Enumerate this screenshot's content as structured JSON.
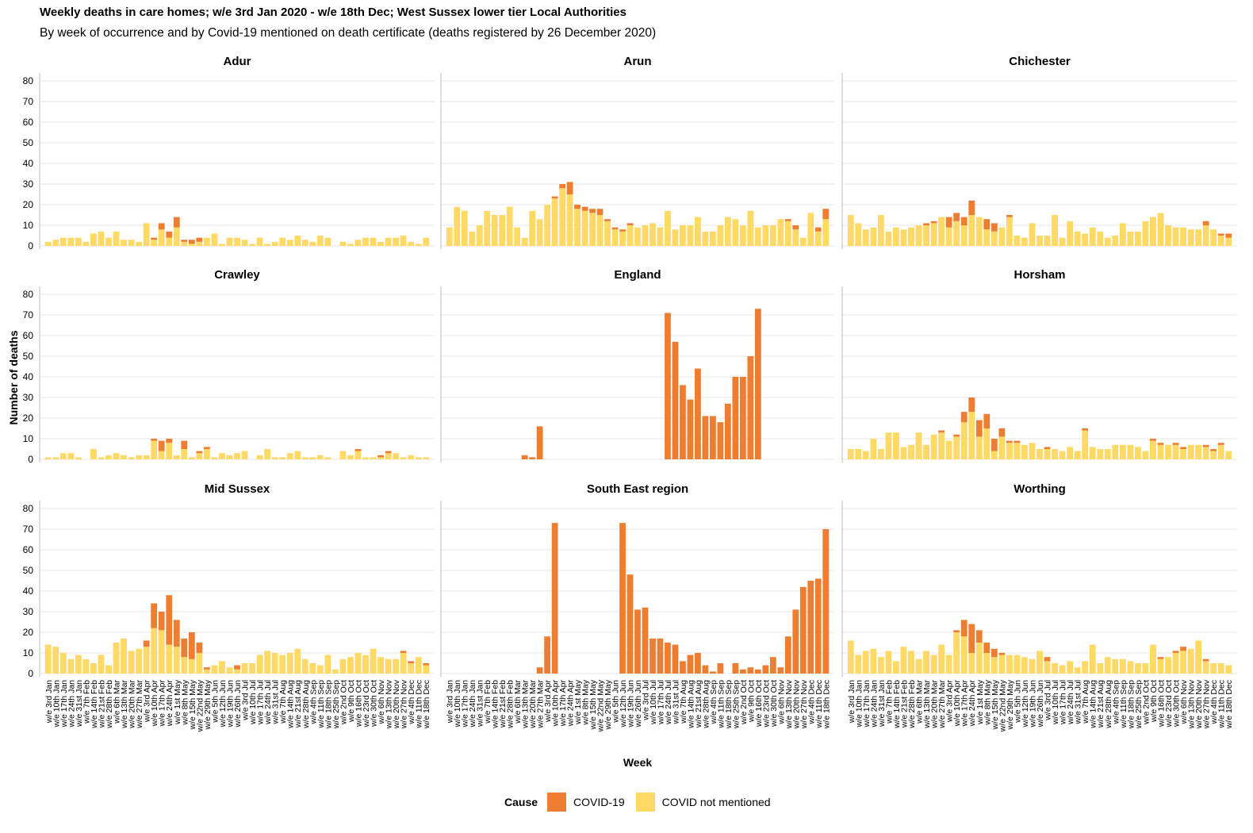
{
  "title": "Weekly deaths in care homes; w/e 3rd Jan 2020 - w/e 18th Dec; West Sussex lower tier Local Authorities",
  "subtitle": "By week of occurrence and by Covid-19 mentioned on death certificate (deaths registered by 26 December 2020)",
  "colors": {
    "covid": "#ED7D31",
    "non_covid": "#FFD966",
    "grid": "#E5E5E5",
    "axis": "#BDBDBD"
  },
  "legend": {
    "title": "Cause",
    "covid_label": "COVID-19",
    "non_covid_label": "COVID not mentioned"
  },
  "chart_data": {
    "type": "bar",
    "stacked": true,
    "xlabel": "Week",
    "ylabel": "Number of deaths",
    "ylim": [
      0,
      80
    ],
    "yticks": [
      0,
      10,
      20,
      30,
      40,
      50,
      60,
      70,
      80
    ],
    "grid": true,
    "legend_position": "bottom",
    "x": [
      "w/e 3rd Jan",
      "w/e 10th Jan",
      "w/e 17th Jan",
      "w/e 24th Jan",
      "w/e 31st Jan",
      "w/e 7th Feb",
      "w/e 14th Feb",
      "w/e 21st Feb",
      "w/e 28th Feb",
      "w/e 6th Mar",
      "w/e 13th Mar",
      "w/e 20th Mar",
      "w/e 27th Mar",
      "w/e 3rd Apr",
      "w/e 10th Apr",
      "w/e 17th Apr",
      "w/e 24th Apr",
      "w/e 1st May",
      "w/e 8th May",
      "w/e 15th May",
      "w/e 22nd May",
      "w/e 29th May",
      "w/e 5th Jun",
      "w/e 12th Jun",
      "w/e 19th Jun",
      "w/e 26th Jun",
      "w/e 3rd Jul",
      "w/e 10th Jul",
      "w/e 17th Jul",
      "w/e 24th Jul",
      "w/e 31st Jul",
      "w/e 7th Aug",
      "w/e 14th Aug",
      "w/e 21st Aug",
      "w/e 28th Aug",
      "w/e 4th Sep",
      "w/e 11th Sep",
      "w/e 18th Sep",
      "w/e 25th Sep",
      "w/e 2nd Oct",
      "w/e 9th Oct",
      "w/e 16th Oct",
      "w/e 23rd Oct",
      "w/e 30th Oct",
      "w/e 6th Nov",
      "w/e 13th Nov",
      "w/e 20th Nov",
      "w/e 27th Nov",
      "w/e 4th Dec",
      "w/e 11th Dec",
      "w/e 18th Dec"
    ],
    "series_names": [
      "COVID-19",
      "COVID not mentioned"
    ],
    "panels": [
      {
        "name": "Adur",
        "non_covid": [
          2,
          3,
          4,
          4,
          4,
          2,
          6,
          7,
          4,
          7,
          3,
          3,
          2,
          11,
          3,
          8,
          4,
          9,
          2,
          1,
          2,
          4,
          6,
          1,
          4,
          4,
          3,
          1,
          4,
          1,
          2,
          4,
          3,
          5,
          3,
          2,
          5,
          4,
          0,
          2,
          1,
          3,
          4,
          4,
          2,
          4,
          4,
          5,
          2,
          1,
          4
        ],
        "covid": [
          0,
          0,
          0,
          0,
          0,
          0,
          0,
          0,
          0,
          0,
          0,
          0,
          0,
          0,
          1,
          3,
          3,
          5,
          1,
          2,
          2,
          0,
          0,
          0,
          0,
          0,
          0,
          0,
          0,
          0,
          0,
          0,
          0,
          0,
          0,
          0,
          0,
          0,
          0,
          0,
          0,
          0,
          0,
          0,
          0,
          0,
          0,
          0,
          0,
          0,
          0
        ]
      },
      {
        "name": "Arun",
        "non_covid": [
          9,
          19,
          17,
          7,
          10,
          17,
          15,
          15,
          19,
          9,
          4,
          17,
          13,
          20,
          23,
          28,
          25,
          18,
          17,
          16,
          15,
          12,
          8,
          7,
          10,
          9,
          10,
          11,
          9,
          17,
          8,
          10,
          10,
          14,
          7,
          7,
          10,
          14,
          13,
          10,
          17,
          9,
          10,
          10,
          13,
          12,
          8,
          4,
          16,
          7,
          13
        ],
        "covid": [
          0,
          0,
          0,
          0,
          0,
          0,
          0,
          0,
          0,
          0,
          0,
          0,
          0,
          0,
          1,
          2,
          6,
          2,
          2,
          2,
          3,
          1,
          1,
          1,
          1,
          0,
          0,
          0,
          0,
          0,
          0,
          0,
          0,
          0,
          0,
          0,
          0,
          0,
          0,
          0,
          0,
          0,
          0,
          0,
          0,
          1,
          2,
          0,
          0,
          2,
          5
        ]
      },
      {
        "name": "Chichester",
        "non_covid": [
          15,
          11,
          8,
          9,
          15,
          7,
          9,
          8,
          9,
          10,
          10,
          11,
          14,
          9,
          12,
          10,
          15,
          14,
          8,
          7,
          9,
          14,
          5,
          4,
          11,
          5,
          5,
          15,
          4,
          12,
          7,
          6,
          9,
          7,
          4,
          5,
          11,
          7,
          7,
          12,
          14,
          16,
          10,
          9,
          9,
          8,
          8,
          10,
          8,
          5,
          4
        ],
        "covid": [
          0,
          0,
          0,
          0,
          0,
          0,
          0,
          0,
          0,
          0,
          1,
          1,
          0,
          5,
          4,
          4,
          7,
          0,
          5,
          4,
          0,
          1,
          0,
          0,
          0,
          0,
          0,
          0,
          0,
          0,
          0,
          0,
          0,
          0,
          0,
          0,
          0,
          0,
          0,
          0,
          0,
          0,
          0,
          0,
          0,
          0,
          0,
          2,
          0,
          1,
          2
        ]
      },
      {
        "name": "Crawley",
        "non_covid": [
          1,
          1,
          3,
          3,
          1,
          0,
          5,
          1,
          2,
          3,
          2,
          1,
          2,
          2,
          9,
          4,
          8,
          2,
          5,
          1,
          3,
          5,
          1,
          3,
          2,
          3,
          4,
          0,
          2,
          5,
          1,
          1,
          3,
          4,
          1,
          1,
          2,
          1,
          0,
          4,
          2,
          4,
          1,
          1,
          1,
          3,
          3,
          1,
          2,
          1,
          1
        ],
        "covid": [
          0,
          0,
          0,
          0,
          0,
          0,
          0,
          0,
          0,
          0,
          0,
          0,
          0,
          0,
          1,
          5,
          2,
          0,
          4,
          0,
          1,
          1,
          0,
          0,
          0,
          0,
          0,
          0,
          0,
          0,
          0,
          0,
          0,
          0,
          0,
          0,
          0,
          0,
          0,
          0,
          0,
          1,
          0,
          0,
          1,
          1,
          0,
          0,
          0,
          0,
          0
        ]
      },
      {
        "name": "England",
        "non_covid": [
          0,
          0,
          0,
          0,
          0,
          0,
          0,
          0,
          0,
          0,
          0,
          0,
          0,
          0,
          0,
          0,
          0,
          0,
          0,
          0,
          0,
          0,
          0,
          0,
          0,
          0,
          0,
          0,
          0,
          0,
          0,
          0,
          0,
          0,
          0,
          0,
          0,
          0,
          0,
          0,
          0,
          0,
          0,
          0,
          0,
          0,
          0,
          0,
          0,
          0,
          0
        ],
        "covid": [
          0,
          0,
          0,
          0,
          0,
          0,
          0,
          0,
          0,
          0,
          2,
          1,
          16,
          0,
          0,
          0,
          0,
          0,
          0,
          0,
          0,
          0,
          0,
          0,
          0,
          0,
          0,
          0,
          0,
          71,
          57,
          36,
          29,
          44,
          21,
          21,
          18,
          27,
          40,
          40,
          50,
          73,
          0,
          0,
          0,
          0,
          0,
          0,
          0,
          0,
          0
        ]
      },
      {
        "name": "Horsham",
        "non_covid": [
          5,
          5,
          4,
          10,
          5,
          13,
          13,
          6,
          7,
          13,
          7,
          12,
          13,
          9,
          11,
          18,
          23,
          11,
          15,
          4,
          11,
          8,
          8,
          7,
          8,
          5,
          5,
          5,
          4,
          6,
          4,
          14,
          6,
          5,
          5,
          7,
          7,
          7,
          6,
          4,
          9,
          7,
          7,
          7,
          5,
          7,
          7,
          6,
          4,
          7,
          4
        ],
        "covid": [
          0,
          0,
          0,
          0,
          0,
          0,
          0,
          0,
          0,
          0,
          0,
          0,
          1,
          0,
          1,
          5,
          7,
          8,
          7,
          6,
          4,
          1,
          1,
          0,
          0,
          0,
          1,
          0,
          0,
          0,
          0,
          1,
          0,
          0,
          0,
          0,
          0,
          0,
          0,
          0,
          1,
          1,
          0,
          1,
          1,
          0,
          0,
          1,
          1,
          1,
          0
        ]
      },
      {
        "name": "Mid Sussex",
        "non_covid": [
          14,
          13,
          10,
          7,
          9,
          7,
          5,
          9,
          4,
          15,
          17,
          11,
          12,
          13,
          22,
          21,
          14,
          13,
          8,
          7,
          10,
          2,
          4,
          6,
          3,
          2,
          5,
          5,
          9,
          11,
          10,
          9,
          10,
          12,
          7,
          5,
          4,
          9,
          2,
          7,
          8,
          10,
          9,
          12,
          8,
          7,
          7,
          10,
          5,
          8,
          4
        ],
        "covid": [
          0,
          0,
          0,
          0,
          0,
          0,
          0,
          0,
          0,
          0,
          0,
          0,
          0,
          3,
          12,
          9,
          24,
          13,
          9,
          13,
          5,
          1,
          0,
          0,
          0,
          2,
          0,
          0,
          0,
          0,
          0,
          0,
          0,
          0,
          0,
          0,
          0,
          0,
          0,
          0,
          0,
          0,
          0,
          0,
          0,
          0,
          0,
          1,
          1,
          0,
          1
        ]
      },
      {
        "name": "South East region",
        "non_covid": [
          0,
          0,
          0,
          0,
          0,
          0,
          0,
          0,
          0,
          0,
          0,
          0,
          0,
          0,
          0,
          0,
          0,
          0,
          0,
          0,
          0,
          0,
          0,
          0,
          0,
          0,
          0,
          0,
          0,
          0,
          0,
          0,
          0,
          0,
          0,
          0,
          0,
          0,
          0,
          0,
          0,
          0,
          0,
          0,
          0,
          0,
          0,
          0,
          0,
          0,
          0
        ],
        "covid": [
          0,
          0,
          0,
          0,
          0,
          0,
          0,
          0,
          0,
          0,
          0,
          0,
          3,
          18,
          73,
          0,
          0,
          0,
          0,
          0,
          0,
          0,
          0,
          73,
          48,
          31,
          32,
          17,
          17,
          15,
          14,
          6,
          9,
          10,
          4,
          1,
          5,
          0,
          5,
          2,
          3,
          2,
          4,
          8,
          3,
          18,
          31,
          42,
          45,
          46,
          70
        ]
      },
      {
        "name": "Worthing",
        "non_covid": [
          16,
          9,
          11,
          12,
          8,
          11,
          6,
          13,
          11,
          7,
          11,
          9,
          14,
          9,
          20,
          18,
          10,
          15,
          10,
          8,
          9,
          9,
          9,
          8,
          7,
          11,
          6,
          5,
          4,
          6,
          3,
          6,
          14,
          5,
          8,
          7,
          7,
          6,
          5,
          5,
          14,
          7,
          8,
          10,
          11,
          12,
          16,
          6,
          5,
          5,
          4
        ],
        "covid": [
          0,
          0,
          0,
          0,
          0,
          0,
          0,
          0,
          0,
          0,
          0,
          0,
          0,
          0,
          1,
          8,
          14,
          6,
          5,
          4,
          1,
          0,
          0,
          0,
          0,
          0,
          2,
          0,
          0,
          0,
          0,
          0,
          0,
          0,
          0,
          0,
          0,
          0,
          0,
          0,
          0,
          1,
          0,
          1,
          2,
          0,
          0,
          1,
          0,
          0,
          0
        ]
      }
    ]
  }
}
